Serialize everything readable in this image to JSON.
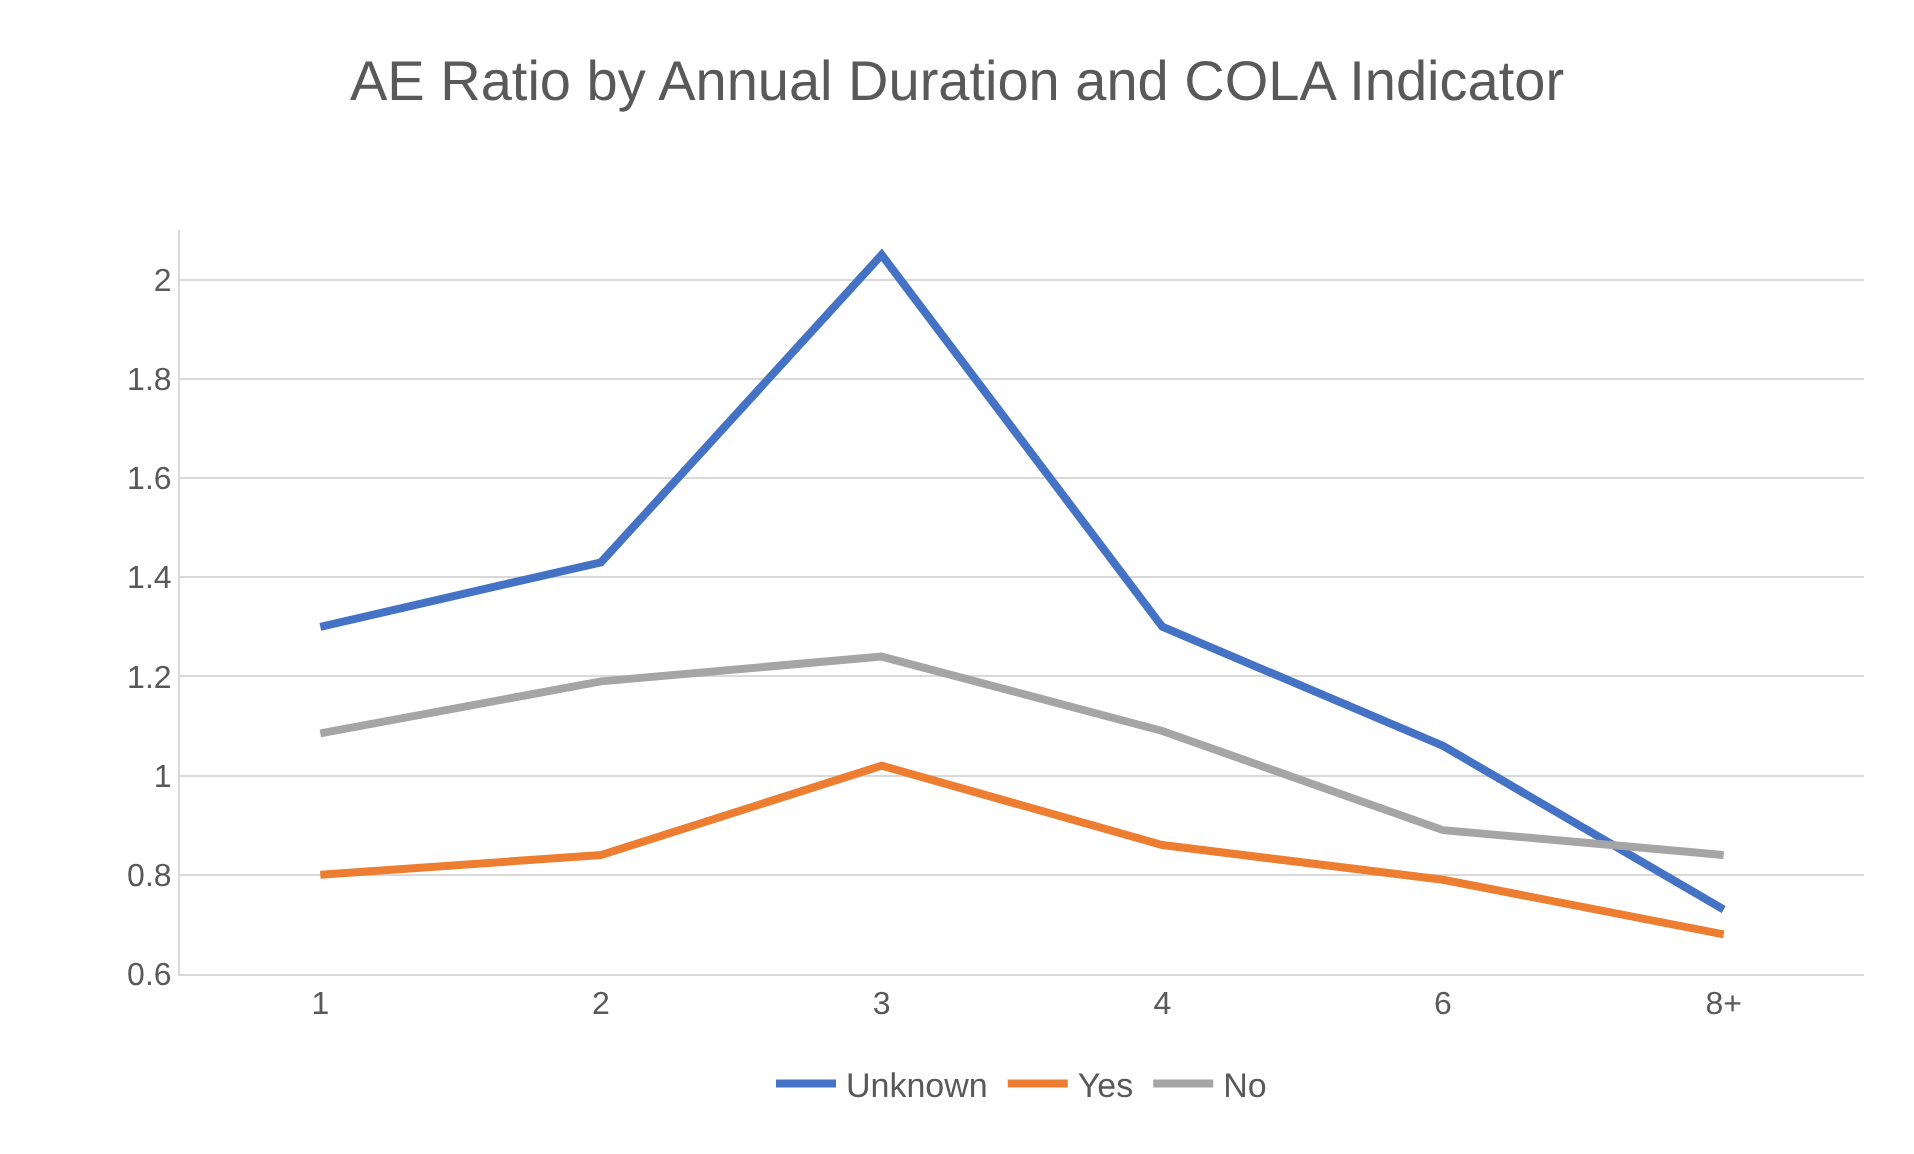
{
  "chart_data": {
    "type": "line",
    "title": "AE Ratio by Annual Duration and COLA Indicator",
    "categories": [
      "1",
      "2",
      "3",
      "4",
      "6",
      "8+"
    ],
    "series": [
      {
        "name": "Unknown",
        "color": "#4472c4",
        "values": [
          1.3,
          1.43,
          2.05,
          1.3,
          1.06,
          0.73
        ]
      },
      {
        "name": "Yes",
        "color": "#ed7d31",
        "values": [
          0.8,
          0.84,
          1.02,
          0.86,
          0.79,
          0.68
        ]
      },
      {
        "name": "No",
        "color": "#a5a5a5",
        "values": [
          1.085,
          1.19,
          1.24,
          1.09,
          0.89,
          0.84
        ]
      }
    ],
    "ylim": [
      0.6,
      2.1
    ],
    "yticks": [
      0.6,
      0.8,
      1,
      1.2,
      1.4,
      1.6,
      1.8,
      2
    ],
    "grid": "y",
    "legend": "bottom",
    "marker": "none",
    "line_style": "solid"
  }
}
